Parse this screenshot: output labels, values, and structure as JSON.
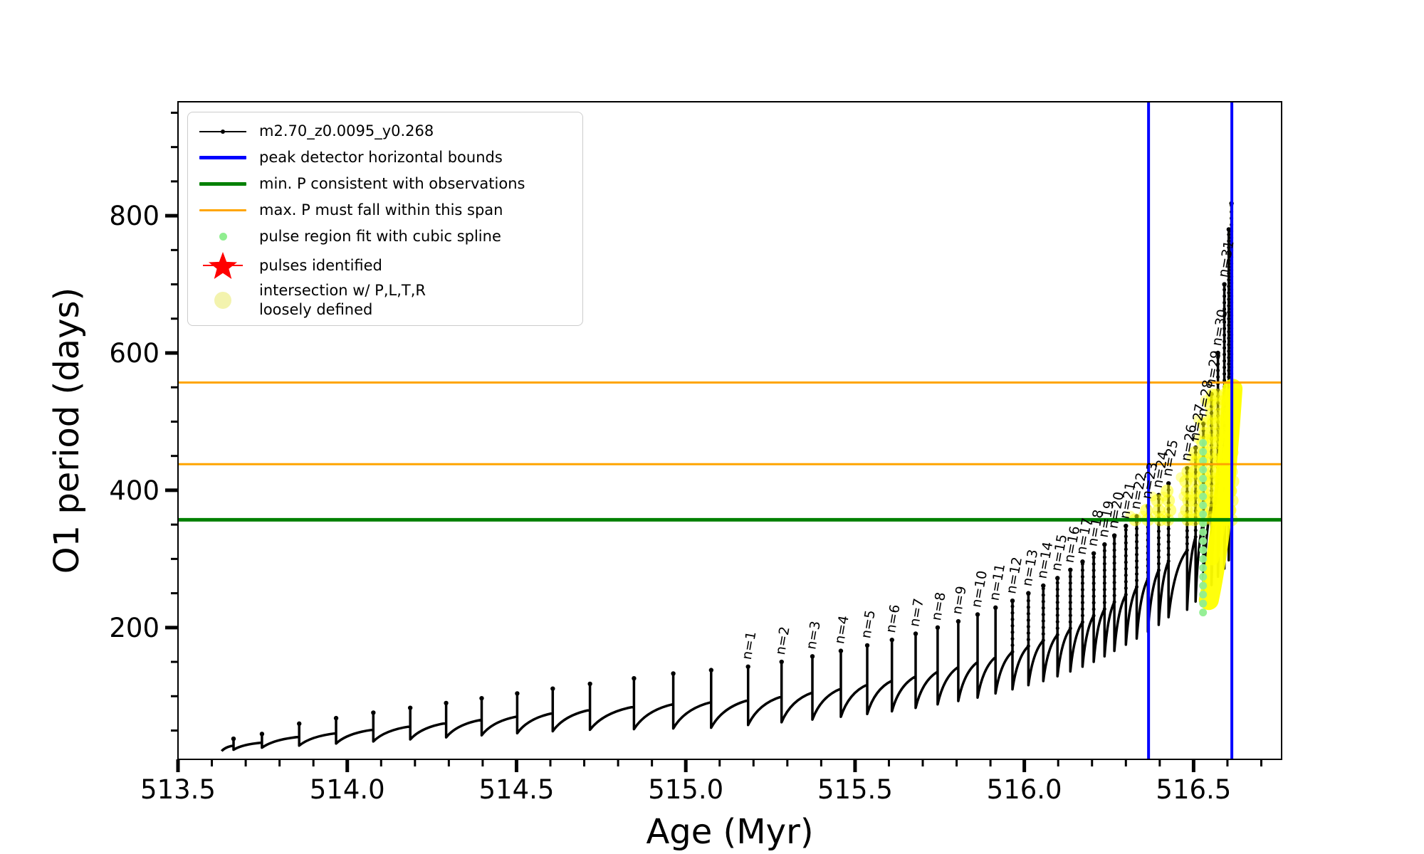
{
  "figure": {
    "background": "#ffffff"
  },
  "chart_data": {
    "type": "line",
    "title": "",
    "xlabel": "Age (Myr)",
    "ylabel": "O1 period (days)",
    "xlim": [
      513.5,
      516.76
    ],
    "ylim": [
      8,
      966
    ],
    "grid": false,
    "legend_position": "upper-left",
    "x_ticks": {
      "values": [
        513.5,
        514.0,
        514.5,
        515.0,
        515.5,
        516.0,
        516.5
      ],
      "labels": [
        "513.5",
        "514.0",
        "514.5",
        "515.0",
        "515.5",
        "516.0",
        "516.5"
      ],
      "minor_step": 0.1
    },
    "y_ticks": {
      "values": [
        200,
        400,
        600,
        800
      ],
      "labels": [
        "200",
        "400",
        "600",
        "800"
      ],
      "minor_step": 50
    },
    "series_label": "m2.70_z0.0095_y0.268",
    "hlines": [
      {
        "name": "min-P-consistent",
        "y": 357,
        "color": "#008000",
        "width": 5
      },
      {
        "name": "max-P-span-upper",
        "y": 557,
        "color": "#FFA500",
        "width": 3
      },
      {
        "name": "max-P-span-lower",
        "y": 438,
        "color": "#FFA500",
        "width": 3
      }
    ],
    "vlines": [
      {
        "name": "peak-detector-left",
        "x": 516.367,
        "color": "#0000FF",
        "width": 4
      },
      {
        "name": "peak-detector-right",
        "x": 516.613,
        "color": "#0000FF",
        "width": 4
      }
    ],
    "pulses": [
      {
        "age": 513.664,
        "dip": 20,
        "peak": 38
      },
      {
        "age": 513.748,
        "dip": 22,
        "peak": 45
      },
      {
        "age": 513.858,
        "dip": 25,
        "peak": 60
      },
      {
        "age": 513.967,
        "dip": 28,
        "peak": 68
      },
      {
        "age": 514.077,
        "dip": 31,
        "peak": 76
      },
      {
        "age": 514.186,
        "dip": 34,
        "peak": 83
      },
      {
        "age": 514.292,
        "dip": 37,
        "peak": 90
      },
      {
        "age": 514.397,
        "dip": 40,
        "peak": 97
      },
      {
        "age": 514.502,
        "dip": 43,
        "peak": 104
      },
      {
        "age": 514.607,
        "dip": 46,
        "peak": 111
      },
      {
        "age": 514.717,
        "dip": 49,
        "peak": 118
      },
      {
        "age": 514.847,
        "dip": 51,
        "peak": 126
      },
      {
        "age": 514.963,
        "dip": 52,
        "peak": 133
      },
      {
        "age": 515.075,
        "dip": 53,
        "peak": 138
      },
      {
        "age": 515.184,
        "dip": 54,
        "peak": 143,
        "label": "n=1"
      },
      {
        "age": 515.283,
        "dip": 58,
        "peak": 150,
        "label": "n=2"
      },
      {
        "age": 515.374,
        "dip": 62,
        "peak": 158,
        "label": "n=3"
      },
      {
        "age": 515.458,
        "dip": 66,
        "peak": 166,
        "label": "n=4"
      },
      {
        "age": 515.536,
        "dip": 70,
        "peak": 174,
        "label": "n=5"
      },
      {
        "age": 515.609,
        "dip": 74,
        "peak": 182,
        "label": "n=6"
      },
      {
        "age": 515.679,
        "dip": 78,
        "peak": 191,
        "label": "n=7"
      },
      {
        "age": 515.744,
        "dip": 83,
        "peak": 200,
        "label": "n=8"
      },
      {
        "age": 515.805,
        "dip": 88,
        "peak": 209,
        "label": "n=9"
      },
      {
        "age": 515.862,
        "dip": 93,
        "peak": 219,
        "label": "n=10"
      },
      {
        "age": 515.915,
        "dip": 98,
        "peak": 229,
        "label": "n=11"
      },
      {
        "age": 515.965,
        "dip": 104,
        "peak": 239,
        "label": "n=12"
      },
      {
        "age": 516.012,
        "dip": 110,
        "peak": 250,
        "label": "n=13"
      },
      {
        "age": 516.056,
        "dip": 116,
        "peak": 261,
        "label": "n=14"
      },
      {
        "age": 516.098,
        "dip": 122,
        "peak": 272,
        "label": "n=15"
      },
      {
        "age": 516.136,
        "dip": 129,
        "peak": 284,
        "label": "n=16"
      },
      {
        "age": 516.172,
        "dip": 136,
        "peak": 296,
        "label": "n=17"
      },
      {
        "age": 516.205,
        "dip": 143,
        "peak": 308,
        "label": "n=18"
      },
      {
        "age": 516.237,
        "dip": 150,
        "peak": 321,
        "label": "n=19"
      },
      {
        "age": 516.266,
        "dip": 158,
        "peak": 334,
        "label": "n=20"
      },
      {
        "age": 516.3,
        "dip": 166,
        "peak": 348,
        "label": "n=21"
      },
      {
        "age": 516.332,
        "dip": 175,
        "peak": 362,
        "label": "n=22"
      },
      {
        "age": 516.365,
        "dip": 184,
        "peak": 377,
        "label": "n=23"
      },
      {
        "age": 516.397,
        "dip": 194,
        "peak": 393,
        "label": "n=24"
      },
      {
        "age": 516.426,
        "dip": 204,
        "peak": 410,
        "label": "n=25"
      },
      {
        "age": 516.481,
        "dip": 215,
        "peak": 432,
        "label": "n=26"
      },
      {
        "age": 516.506,
        "dip": 226,
        "peak": 462,
        "label": "n=27"
      },
      {
        "age": 516.529,
        "dip": 238,
        "peak": 497,
        "label": "n=28"
      },
      {
        "age": 516.553,
        "dip": 250,
        "peak": 540,
        "label": "n=29"
      },
      {
        "age": 516.572,
        "dip": 262,
        "peak": 600,
        "label": "n=30"
      },
      {
        "age": 516.591,
        "dip": 274,
        "peak": 700,
        "label": "n=31"
      },
      {
        "age": 516.604,
        "dip": 286,
        "peak": 780
      },
      {
        "age": 516.612,
        "dip": 298,
        "peak": 818
      }
    ],
    "spline_dots": {
      "age": 516.528,
      "from": 222,
      "to": 478,
      "step": 13,
      "color": "#90EE90"
    },
    "yellow_region": {
      "age_from": 516.33,
      "age_to": 516.62,
      "p_from": 357,
      "p_to": 552,
      "color": "#FFFF00"
    }
  },
  "legend": {
    "entries": [
      {
        "label": "m2.70_z0.0095_y0.268",
        "marker": {
          "type": "line-dot",
          "color": "#000000",
          "lw": 2
        }
      },
      {
        "label": "peak detector horizontal bounds",
        "marker": {
          "type": "line",
          "color": "#0000FF",
          "lw": 5
        }
      },
      {
        "label": "min. P consistent with observations",
        "marker": {
          "type": "line",
          "color": "#008000",
          "lw": 5
        }
      },
      {
        "label": "max. P must fall within this span",
        "marker": {
          "type": "line",
          "color": "#FFA500",
          "lw": 3
        }
      },
      {
        "label": "pulse region fit with cubic spline",
        "marker": {
          "type": "dot",
          "color": "#90EE90",
          "size": 11
        }
      },
      {
        "label": "pulses identified",
        "marker": {
          "type": "star",
          "color": "#FF0000",
          "size": 44
        }
      },
      {
        "label": "intersection w/ P,L,T,R",
        "label2": "loosely defined",
        "marker": {
          "type": "dot",
          "color": "#F3F3AE",
          "size": 24
        }
      }
    ]
  }
}
